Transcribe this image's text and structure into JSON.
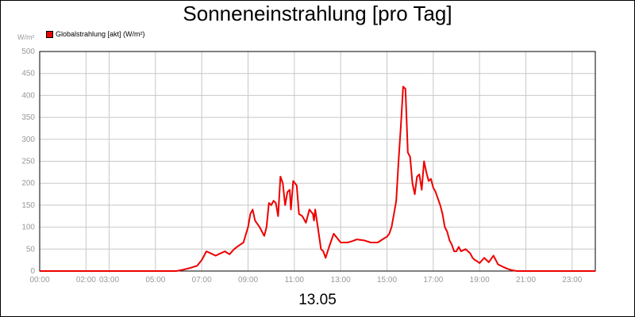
{
  "chart_data": {
    "type": "line",
    "title": "Sonneneinstrahlung [pro Tag]",
    "ylabel": "W/m²",
    "xlabel": "13.05",
    "ylim": [
      0,
      500
    ],
    "yticks": [
      0,
      50,
      100,
      150,
      200,
      250,
      300,
      350,
      400,
      450,
      500
    ],
    "xlim": [
      0,
      24
    ],
    "xticks": [
      {
        "x": 0,
        "label": "00:00"
      },
      {
        "x": 2,
        "label": "02:00"
      },
      {
        "x": 3,
        "label": "03:00"
      },
      {
        "x": 5,
        "label": "05:00"
      },
      {
        "x": 7,
        "label": "07:00"
      },
      {
        "x": 9,
        "label": "09:00"
      },
      {
        "x": 11,
        "label": "11:00"
      },
      {
        "x": 13,
        "label": "13:00"
      },
      {
        "x": 15,
        "label": "15:00"
      },
      {
        "x": 17,
        "label": "17:00"
      },
      {
        "x": 19,
        "label": "19:00"
      },
      {
        "x": 21,
        "label": "21:00"
      },
      {
        "x": 23,
        "label": "23:00"
      }
    ],
    "grid": true,
    "legend_position": "top-left",
    "series": [
      {
        "name": "Globalstrahlung [akt] (W/m²)",
        "color": "#ee0000",
        "x": [
          0,
          5.9,
          6.2,
          6.5,
          6.8,
          7.0,
          7.2,
          7.4,
          7.6,
          7.8,
          8.0,
          8.2,
          8.4,
          8.6,
          8.8,
          9.0,
          9.1,
          9.2,
          9.3,
          9.5,
          9.7,
          9.8,
          9.9,
          10.0,
          10.1,
          10.2,
          10.3,
          10.4,
          10.5,
          10.6,
          10.7,
          10.8,
          10.85,
          10.95,
          11.1,
          11.2,
          11.35,
          11.5,
          11.65,
          11.8,
          11.85,
          11.9,
          12.0,
          12.15,
          12.25,
          12.35,
          12.5,
          12.7,
          13.0,
          13.3,
          13.5,
          13.7,
          14.0,
          14.3,
          14.6,
          14.9,
          15.0,
          15.1,
          15.2,
          15.3,
          15.4,
          15.5,
          15.6,
          15.7,
          15.8,
          15.9,
          16.0,
          16.1,
          16.2,
          16.3,
          16.4,
          16.5,
          16.6,
          16.7,
          16.8,
          16.9,
          17.0,
          17.1,
          17.2,
          17.3,
          17.4,
          17.5,
          17.6,
          17.7,
          17.8,
          17.9,
          18.0,
          18.1,
          18.2,
          18.4,
          18.5,
          18.6,
          18.7,
          18.8,
          18.9,
          19.0,
          19.2,
          19.4,
          19.6,
          19.8,
          20.0,
          20.2,
          20.4,
          20.6,
          20.8,
          21.0,
          21.2,
          24.0
        ],
        "y": [
          0,
          0,
          3,
          7,
          12,
          25,
          45,
          40,
          35,
          40,
          45,
          38,
          50,
          58,
          65,
          100,
          130,
          140,
          115,
          100,
          80,
          100,
          155,
          150,
          160,
          155,
          125,
          215,
          200,
          150,
          180,
          185,
          140,
          205,
          195,
          130,
          125,
          110,
          140,
          130,
          115,
          140,
          105,
          50,
          45,
          30,
          55,
          85,
          65,
          65,
          68,
          72,
          70,
          65,
          65,
          75,
          78,
          85,
          100,
          130,
          160,
          250,
          330,
          420,
          415,
          270,
          260,
          200,
          175,
          215,
          220,
          185,
          250,
          225,
          205,
          210,
          190,
          180,
          165,
          150,
          130,
          100,
          90,
          70,
          60,
          45,
          45,
          55,
          45,
          50,
          45,
          40,
          30,
          25,
          22,
          18,
          30,
          20,
          35,
          15,
          10,
          5,
          2,
          0,
          0,
          0,
          0,
          0
        ]
      }
    ]
  }
}
